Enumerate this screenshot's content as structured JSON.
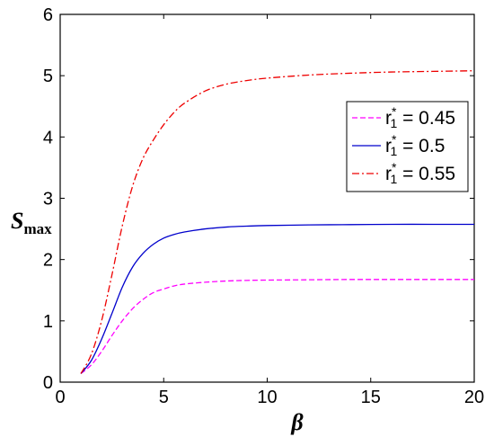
{
  "chart_data": {
    "type": "line",
    "xlabel": "β",
    "ylabel_main": "S",
    "ylabel_sub": "max",
    "xlim": [
      0,
      20
    ],
    "ylim": [
      0,
      6
    ],
    "xticks": [
      0,
      5,
      10,
      15,
      20
    ],
    "yticks": [
      0,
      1,
      2,
      3,
      4,
      5,
      6
    ],
    "xtick_labels": [
      "0",
      "5",
      "10",
      "15",
      "20"
    ],
    "ytick_labels": [
      "0",
      "1",
      "2",
      "3",
      "4",
      "5",
      "6"
    ],
    "grid": false,
    "legend_position": "right",
    "series": [
      {
        "name": "r1* = 0.45",
        "label_main": "r",
        "label_sub": "1",
        "label_sup": "*",
        "label_value": " = 0.45",
        "color": "#ff00ff",
        "dash": "dashed",
        "x": [
          1.0,
          1.5,
          2.0,
          2.5,
          3.0,
          3.5,
          4.0,
          4.5,
          5.0,
          5.5,
          6.0,
          7.0,
          8.0,
          9.0,
          10.0,
          12.0,
          14.0,
          16.0,
          18.0,
          20.0
        ],
        "y": [
          0.14,
          0.28,
          0.5,
          0.76,
          1.0,
          1.2,
          1.35,
          1.46,
          1.52,
          1.57,
          1.6,
          1.63,
          1.65,
          1.66,
          1.665,
          1.67,
          1.675,
          1.675,
          1.675,
          1.675
        ]
      },
      {
        "name": "r1* = 0.5",
        "label_main": "r",
        "label_sub": "1",
        "label_sup": "*",
        "label_value": " = 0.5",
        "color": "#0000cc",
        "dash": "solid",
        "x": [
          1.0,
          1.5,
          2.0,
          2.5,
          3.0,
          3.5,
          4.0,
          4.5,
          5.0,
          5.5,
          6.0,
          7.0,
          8.0,
          9.0,
          10.0,
          12.0,
          14.0,
          16.0,
          18.0,
          20.0
        ],
        "y": [
          0.14,
          0.35,
          0.7,
          1.12,
          1.55,
          1.88,
          2.1,
          2.25,
          2.35,
          2.41,
          2.45,
          2.5,
          2.53,
          2.545,
          2.555,
          2.565,
          2.57,
          2.575,
          2.575,
          2.575
        ]
      },
      {
        "name": "r1* = 0.55",
        "label_main": "r",
        "label_sub": "1",
        "label_sup": "*",
        "label_value": " = 0.55",
        "color": "#ee0000",
        "dash": "dashdot",
        "x": [
          1.0,
          1.5,
          2.0,
          2.5,
          3.0,
          3.5,
          4.0,
          4.5,
          5.0,
          5.5,
          6.0,
          7.0,
          8.0,
          9.0,
          10.0,
          12.0,
          14.0,
          16.0,
          18.0,
          20.0
        ],
        "y": [
          0.14,
          0.45,
          1.0,
          1.75,
          2.55,
          3.2,
          3.65,
          3.95,
          4.2,
          4.4,
          4.55,
          4.75,
          4.86,
          4.92,
          4.96,
          5.01,
          5.04,
          5.06,
          5.07,
          5.08
        ]
      }
    ]
  }
}
